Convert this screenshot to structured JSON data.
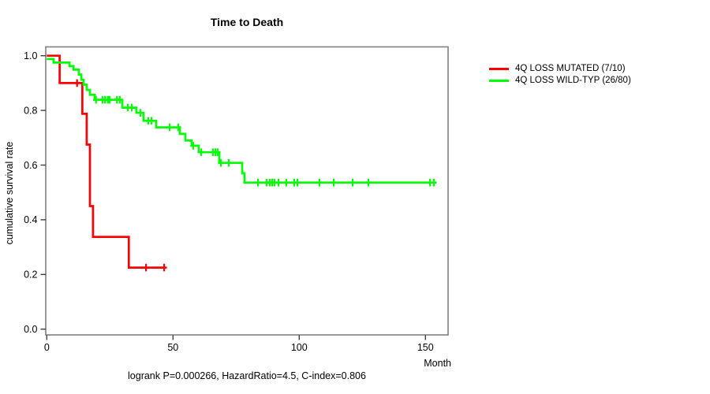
{
  "chart_data": {
    "type": "line",
    "subtype": "kaplan_meier_step",
    "title": "Time to Death",
    "xlabel": "Month",
    "ylabel": "cumulative survival rate",
    "annotation": "logrank P=0.000266, HazardRatio=4.5, C-index=0.806",
    "stats": {
      "logrank_p": 0.000266,
      "hazard_ratio": 4.5,
      "c_index": 0.806
    },
    "xlim": [
      0,
      160
    ],
    "ylim": [
      0.0,
      1.0
    ],
    "grid": false,
    "legend_position": "top-right-outside",
    "x_axis": {
      "tick_values": [
        0,
        50,
        100,
        150
      ],
      "tick_labels": [
        "0",
        "50",
        "100",
        "150"
      ]
    },
    "y_axis": {
      "tick_values": [
        0.0,
        0.2,
        0.4,
        0.6,
        0.8,
        1.0
      ],
      "tick_labels": [
        "0.0",
        "0.2",
        "0.4",
        "0.6",
        "0.8",
        "1.0"
      ]
    },
    "series": [
      {
        "name": "4Q LOSS MUTATED (7/10)",
        "events": "7/10",
        "color": "#ff0000",
        "steps": [
          [
            0,
            1.0
          ],
          [
            5.1,
            0.9
          ],
          [
            14.1,
            0.7875
          ],
          [
            15.8,
            0.675
          ],
          [
            17.1,
            0.45
          ],
          [
            18.3,
            0.3375
          ],
          [
            32.5,
            0.225
          ]
        ],
        "end_month": 47.1,
        "censors": [
          [
            12.0,
            0.9
          ],
          [
            39.3,
            0.225
          ],
          [
            46.5,
            0.225
          ]
        ]
      },
      {
        "name": "4Q LOSS WILD-TYP (26/80)",
        "events": "26/80",
        "color": "#00ff00",
        "steps": [
          [
            0,
            0.988
          ],
          [
            2.7,
            0.975
          ],
          [
            9.0,
            0.962
          ],
          [
            10.6,
            0.949
          ],
          [
            12.7,
            0.931
          ],
          [
            13.7,
            0.912
          ],
          [
            14.6,
            0.894
          ],
          [
            15.8,
            0.875
          ],
          [
            17.1,
            0.857
          ],
          [
            19.0,
            0.839
          ],
          [
            29.9,
            0.81
          ],
          [
            35.5,
            0.791
          ],
          [
            38.3,
            0.762
          ],
          [
            43.3,
            0.738
          ],
          [
            52.7,
            0.714
          ],
          [
            54.9,
            0.69
          ],
          [
            57.4,
            0.671
          ],
          [
            60.2,
            0.647
          ],
          [
            68.3,
            0.608
          ],
          [
            77.4,
            0.57
          ],
          [
            78.3,
            0.536
          ]
        ],
        "end_month": 154.3,
        "censors": [
          [
            19.5,
            0.839
          ],
          [
            22.1,
            0.839
          ],
          [
            23.1,
            0.839
          ],
          [
            24.2,
            0.839
          ],
          [
            24.9,
            0.839
          ],
          [
            27.8,
            0.839
          ],
          [
            28.9,
            0.839
          ],
          [
            32.1,
            0.81
          ],
          [
            33.7,
            0.81
          ],
          [
            37.1,
            0.791
          ],
          [
            40.2,
            0.762
          ],
          [
            41.5,
            0.762
          ],
          [
            48.7,
            0.738
          ],
          [
            52.1,
            0.738
          ],
          [
            58.0,
            0.671
          ],
          [
            61.2,
            0.647
          ],
          [
            65.8,
            0.647
          ],
          [
            66.8,
            0.647
          ],
          [
            67.7,
            0.647
          ],
          [
            69.0,
            0.608
          ],
          [
            72.1,
            0.608
          ],
          [
            83.7,
            0.536
          ],
          [
            87.1,
            0.536
          ],
          [
            88.3,
            0.536
          ],
          [
            89.3,
            0.536
          ],
          [
            90.2,
            0.536
          ],
          [
            91.8,
            0.536
          ],
          [
            94.9,
            0.536
          ],
          [
            98.0,
            0.536
          ],
          [
            99.3,
            0.536
          ],
          [
            108.0,
            0.536
          ],
          [
            113.7,
            0.536
          ],
          [
            121.2,
            0.536
          ],
          [
            127.4,
            0.536
          ],
          [
            151.8,
            0.536
          ],
          [
            153.3,
            0.536
          ]
        ]
      }
    ]
  }
}
